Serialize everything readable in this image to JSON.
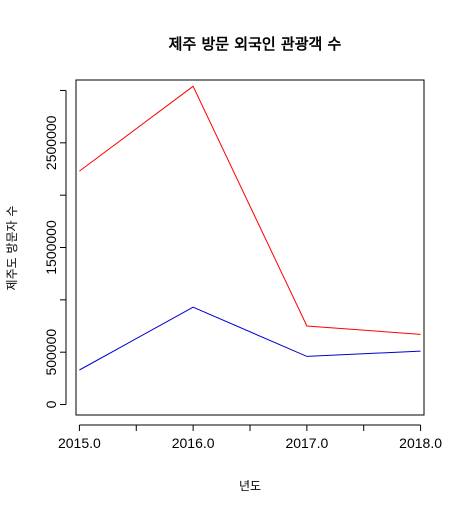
{
  "chart_data": {
    "type": "line",
    "title": "제주 방문 외국인 관광객 수",
    "xlabel": "년도",
    "ylabel": "제주도 방문자 수",
    "x": [
      2015,
      2016,
      2017,
      2018
    ],
    "x_tick_labels": [
      "2015.0",
      "2016.0",
      "2017.0",
      "2018.0"
    ],
    "y_tick_labels": [
      "0",
      "500000",
      "1500000",
      "2500000"
    ],
    "xlim": [
      2014.97,
      2018.03
    ],
    "ylim": [
      -100000,
      3100000
    ],
    "grid": false,
    "series": [
      {
        "color": "#ff0000",
        "values": [
          2230000,
          3040000,
          750000,
          670000
        ]
      },
      {
        "color": "#0000cd",
        "values": [
          330000,
          930000,
          460000,
          510000
        ]
      }
    ]
  }
}
